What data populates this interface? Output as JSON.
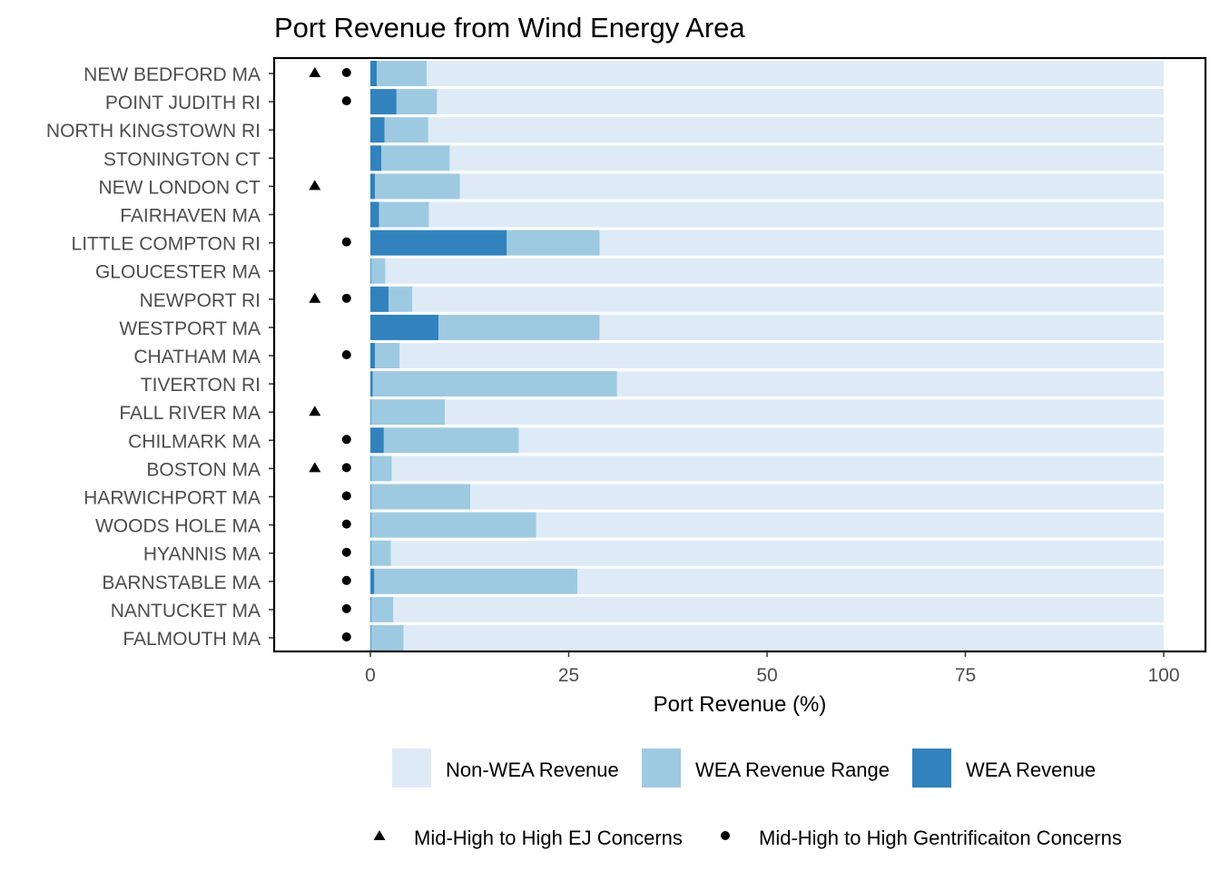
{
  "chart_data": {
    "type": "bar",
    "orientation": "horizontal",
    "stacked": true,
    "title": "Port Revenue from Wind Energy Area",
    "xlabel": "Port Revenue (%)",
    "ylabel": "",
    "xlim": [
      -12,
      105
    ],
    "x_ticks": [
      0,
      25,
      50,
      75,
      100
    ],
    "x_tick_labels": [
      "0",
      "25",
      "50",
      "75",
      "100"
    ],
    "grid": false,
    "categories": [
      "NEW BEDFORD MA",
      "POINT JUDITH RI",
      "NORTH KINGSTOWN RI",
      "STONINGTON CT",
      "NEW LONDON CT",
      "FAIRHAVEN MA",
      "LITTLE COMPTON RI",
      "GLOUCESTER MA",
      "NEWPORT RI",
      "WESTPORT MA",
      "CHATHAM MA",
      "TIVERTON RI",
      "FALL RIVER MA",
      "CHILMARK MA",
      "BOSTON MA",
      "HARWICHPORT MA",
      "WOODS HOLE MA",
      "HYANNIS MA",
      "BARNSTABLE MA",
      "NANTUCKET MA",
      "FALMOUTH MA"
    ],
    "series": [
      {
        "name": "WEA Revenue",
        "color": "#3182bd",
        "values": [
          0.8,
          3.3,
          1.8,
          1.4,
          0.6,
          1.1,
          17.2,
          0.1,
          2.3,
          8.6,
          0.6,
          0.3,
          0.1,
          1.7,
          0.1,
          0.1,
          0.1,
          0.1,
          0.5,
          0.1,
          0.1
        ]
      },
      {
        "name": "WEA Revenue Range",
        "color": "#9ecae1",
        "values": [
          6.3,
          5.1,
          5.5,
          8.6,
          10.7,
          6.3,
          11.7,
          1.8,
          3.0,
          20.3,
          3.1,
          30.8,
          9.3,
          17.0,
          2.6,
          12.5,
          20.8,
          2.5,
          25.6,
          2.8,
          4.1
        ]
      },
      {
        "name": "Non-WEA Revenue",
        "color": "#deebf7",
        "values": [
          92.9,
          91.6,
          92.7,
          90.0,
          88.7,
          92.6,
          71.1,
          98.1,
          94.7,
          71.1,
          96.3,
          68.9,
          90.6,
          81.3,
          97.3,
          87.4,
          79.1,
          97.4,
          73.9,
          97.1,
          95.8
        ]
      }
    ],
    "ej_concern": [
      true,
      false,
      false,
      false,
      true,
      false,
      false,
      false,
      true,
      false,
      false,
      false,
      true,
      false,
      true,
      false,
      false,
      false,
      false,
      false,
      false
    ],
    "gentrification_concern": [
      true,
      true,
      false,
      false,
      false,
      false,
      true,
      false,
      true,
      false,
      true,
      false,
      false,
      true,
      true,
      true,
      true,
      true,
      true,
      true,
      true
    ],
    "legend": {
      "placement": "bottom",
      "fill_entries": [
        {
          "label": "Non-WEA Revenue",
          "color": "#deebf7"
        },
        {
          "label": "WEA Revenue Range",
          "color": "#9ecae1"
        },
        {
          "label": "WEA Revenue",
          "color": "#3182bd"
        }
      ],
      "marker_entries": [
        {
          "label": "Mid-High to High EJ Concerns",
          "marker": "triangle"
        },
        {
          "label": "Mid-High to High Gentrificaiton Concerns",
          "marker": "circle"
        }
      ]
    },
    "markers": {
      "ej": {
        "shape": "triangle",
        "x": -7
      },
      "gentrification": {
        "shape": "circle",
        "x": -3
      }
    }
  }
}
